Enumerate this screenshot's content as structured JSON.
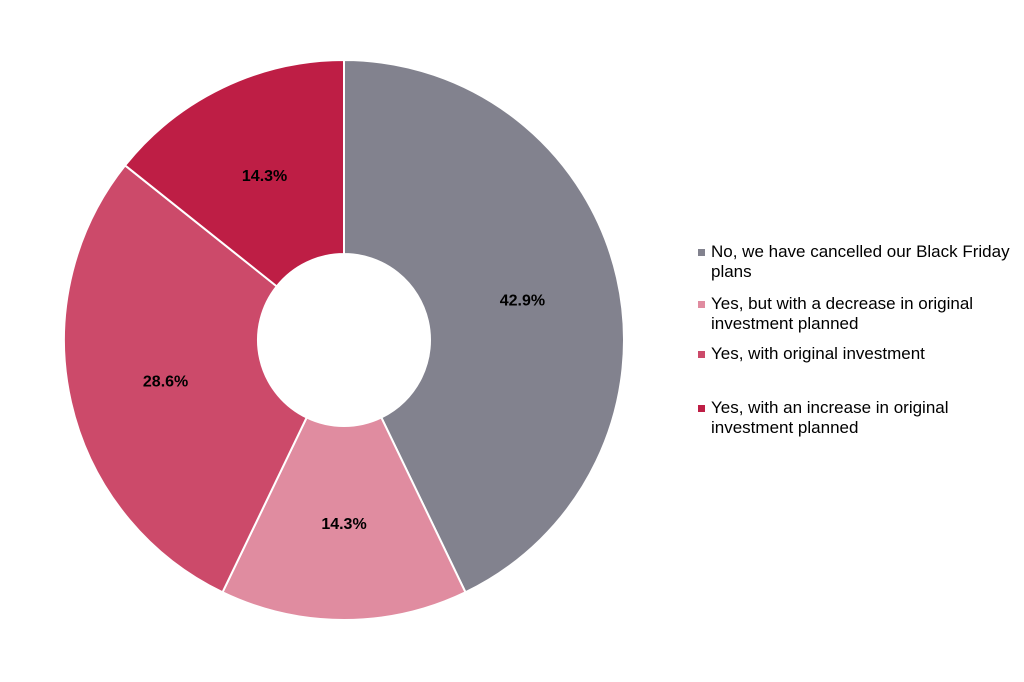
{
  "chart_data": {
    "type": "pie",
    "donut": true,
    "categories": [
      "No, we have cancelled our Black Friday plans",
      "Yes, but with a decrease in original investment planned",
      "Yes, with original investment",
      "Yes, with an increase in original investment planned"
    ],
    "values": [
      42.9,
      14.3,
      28.6,
      14.3
    ],
    "data_labels": [
      "42.9%",
      "14.3%",
      "28.6%",
      "14.3%"
    ],
    "colors": [
      "#82828e",
      "#e08ca0",
      "#cc4a6a",
      "#be1e45"
    ],
    "legend_placement": "right",
    "title": ""
  }
}
